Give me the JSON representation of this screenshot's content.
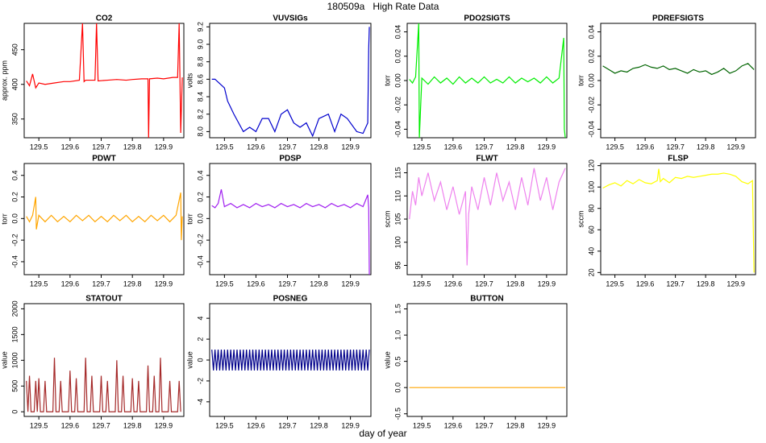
{
  "title": "180509a   High Rate Data",
  "x_label": "day of year",
  "chart_data": [
    {
      "type": "line",
      "title": "CO2",
      "y_label": "approx. ppm",
      "color": "#ff0000",
      "x": [
        129.46,
        129.47,
        129.48,
        129.49,
        129.5,
        129.52,
        129.55,
        129.58,
        129.6,
        129.63,
        129.64,
        129.645,
        129.65,
        129.68,
        129.685,
        129.69,
        129.72,
        129.75,
        129.78,
        129.8,
        129.83,
        129.85,
        129.852,
        129.855,
        129.88,
        129.9,
        129.93,
        129.945,
        129.95,
        129.955,
        129.96
      ],
      "values": [
        405,
        398,
        415,
        395,
        402,
        400,
        402,
        404,
        404,
        406,
        488,
        404,
        406,
        406,
        488,
        405,
        406,
        407,
        406,
        407,
        408,
        408,
        322,
        408,
        409,
        408,
        410,
        410,
        488,
        330,
        410
      ],
      "xlim": [
        129.453,
        129.965
      ],
      "xticks": [
        129.5,
        129.6,
        129.7,
        129.8,
        129.9
      ],
      "ylim": [
        323,
        488
      ],
      "yticks": [
        350,
        400,
        450
      ]
    },
    {
      "type": "line",
      "title": "VUVSIGs",
      "y_label": "volts",
      "color": "#0000cd",
      "x": [
        129.46,
        129.47,
        129.5,
        129.51,
        129.53,
        129.56,
        129.58,
        129.6,
        129.62,
        129.64,
        129.66,
        129.68,
        129.7,
        129.72,
        129.74,
        129.76,
        129.78,
        129.8,
        129.83,
        129.85,
        129.87,
        129.89,
        129.92,
        129.94,
        129.955,
        129.958,
        129.96
      ],
      "values": [
        8.6,
        8.6,
        8.5,
        8.35,
        8.2,
        8.0,
        8.05,
        8.0,
        8.15,
        8.15,
        8.0,
        8.2,
        8.25,
        8.1,
        8.05,
        8.1,
        7.95,
        8.15,
        8.2,
        8.0,
        8.2,
        8.15,
        8.0,
        7.98,
        8.1,
        8.95,
        9.2
      ],
      "xlim": [
        129.453,
        129.965
      ],
      "xticks": [
        129.5,
        129.6,
        129.7,
        129.8,
        129.9
      ],
      "ylim": [
        7.93,
        9.24
      ],
      "yticks": [
        {
          "value": 8,
          "label": "8.0"
        },
        {
          "value": 8.2,
          "label": "8.2"
        },
        {
          "value": 8.4,
          "label": "8.4"
        },
        {
          "value": 8.6,
          "label": "8.6"
        },
        {
          "value": 8.8,
          "label": "8.8"
        },
        {
          "value": 9,
          "label": "9.0"
        },
        {
          "value": 9.2,
          "label": "9.2"
        }
      ]
    },
    {
      "type": "line",
      "title": "PDO2SIGTS",
      "y_label": "torr",
      "color": "#00ee00",
      "x": [
        129.46,
        129.47,
        129.48,
        129.49,
        129.492,
        129.5,
        129.52,
        129.54,
        129.56,
        129.58,
        129.6,
        129.62,
        129.64,
        129.66,
        129.68,
        129.7,
        129.72,
        129.74,
        129.76,
        129.78,
        129.8,
        129.82,
        129.84,
        129.86,
        129.88,
        129.9,
        129.92,
        129.94,
        129.955,
        129.957,
        129.96
      ],
      "values": [
        0.001,
        -0.002,
        0.003,
        0.047,
        -0.047,
        0.002,
        -0.003,
        0.003,
        -0.002,
        0.002,
        -0.003,
        0.003,
        -0.002,
        0.002,
        -0.002,
        0.003,
        -0.002,
        0.001,
        -0.002,
        0.003,
        -0.002,
        0.002,
        -0.001,
        0.002,
        -0.002,
        0.003,
        -0.002,
        0.002,
        0.035,
        -0.04,
        -0.047
      ],
      "xlim": [
        129.453,
        129.965
      ],
      "xticks": [
        129.5,
        129.6,
        129.7,
        129.8,
        129.9
      ],
      "ylim": [
        -0.047,
        0.047
      ],
      "yticks": [
        {
          "value": -0.04,
          "label": "-0.04"
        },
        {
          "value": -0.02,
          "label": "-0.02"
        },
        {
          "value": 0,
          "label": "0.00"
        },
        {
          "value": 0.02,
          "label": "0.02"
        },
        {
          "value": 0.04,
          "label": "0.04"
        }
      ]
    },
    {
      "type": "line",
      "title": "PDREFSIGTS",
      "y_label": "torr",
      "color": "#006400",
      "x": [
        129.46,
        129.48,
        129.5,
        129.52,
        129.54,
        129.56,
        129.58,
        129.6,
        129.62,
        129.64,
        129.66,
        129.68,
        129.7,
        129.72,
        129.74,
        129.76,
        129.78,
        129.8,
        129.82,
        129.84,
        129.86,
        129.88,
        129.9,
        129.92,
        129.94,
        129.96
      ],
      "values": [
        0.012,
        0.009,
        0.006,
        0.008,
        0.007,
        0.01,
        0.011,
        0.013,
        0.011,
        0.01,
        0.012,
        0.009,
        0.01,
        0.008,
        0.006,
        0.009,
        0.007,
        0.008,
        0.005,
        0.007,
        0.01,
        0.006,
        0.008,
        0.012,
        0.014,
        0.009
      ],
      "xlim": [
        129.453,
        129.965
      ],
      "xticks": [
        129.5,
        129.6,
        129.7,
        129.8,
        129.9
      ],
      "ylim": [
        -0.047,
        0.047
      ],
      "yticks": [
        {
          "value": -0.04,
          "label": "-0.04"
        },
        {
          "value": -0.02,
          "label": "-0.02"
        },
        {
          "value": 0,
          "label": "0.00"
        },
        {
          "value": 0.02,
          "label": "0.02"
        },
        {
          "value": 0.04,
          "label": "0.04"
        }
      ]
    },
    {
      "type": "line",
      "title": "PDWT",
      "y_label": "torr",
      "color": "#ffa500",
      "x": [
        129.46,
        129.47,
        129.48,
        129.49,
        129.492,
        129.5,
        129.52,
        129.54,
        129.56,
        129.58,
        129.6,
        129.62,
        129.64,
        129.66,
        129.68,
        129.7,
        129.72,
        129.74,
        129.76,
        129.78,
        129.8,
        129.82,
        129.84,
        129.86,
        129.88,
        129.9,
        129.92,
        129.94,
        129.955,
        129.957,
        129.96
      ],
      "values": [
        0.02,
        -0.03,
        0.03,
        0.2,
        -0.1,
        0.03,
        -0.03,
        0.03,
        -0.03,
        0.02,
        -0.03,
        0.03,
        -0.02,
        0.03,
        -0.03,
        0.02,
        -0.03,
        0.03,
        -0.02,
        0.03,
        -0.03,
        0.02,
        -0.03,
        0.03,
        -0.02,
        0.03,
        -0.03,
        0.03,
        0.24,
        -0.2,
        0.02
      ],
      "xlim": [
        129.453,
        129.965
      ],
      "xticks": [
        129.5,
        129.6,
        129.7,
        129.8,
        129.9
      ],
      "ylim": [
        -0.52,
        0.51
      ],
      "yticks": [
        {
          "value": -0.4,
          "label": "-0.4"
        },
        {
          "value": -0.2,
          "label": "-0.2"
        },
        {
          "value": 0,
          "label": "0.0"
        },
        {
          "value": 0.2,
          "label": "0.2"
        },
        {
          "value": 0.4,
          "label": "0.4"
        }
      ]
    },
    {
      "type": "line",
      "title": "PDSP",
      "y_label": "torr",
      "color": "#a020f0",
      "x": [
        129.46,
        129.47,
        129.48,
        129.49,
        129.5,
        129.52,
        129.54,
        129.56,
        129.58,
        129.6,
        129.62,
        129.64,
        129.66,
        129.68,
        129.7,
        129.72,
        129.74,
        129.76,
        129.78,
        129.8,
        129.82,
        129.84,
        129.86,
        129.88,
        129.9,
        129.92,
        129.94,
        129.955,
        129.958,
        129.96
      ],
      "values": [
        0.12,
        0.1,
        0.14,
        0.27,
        0.11,
        0.14,
        0.1,
        0.13,
        0.1,
        0.14,
        0.11,
        0.13,
        0.1,
        0.14,
        0.11,
        0.13,
        0.1,
        0.14,
        0.11,
        0.13,
        0.1,
        0.14,
        0.11,
        0.13,
        0.1,
        0.14,
        0.11,
        0.22,
        0.1,
        -0.52
      ],
      "xlim": [
        129.453,
        129.965
      ],
      "xticks": [
        129.5,
        129.6,
        129.7,
        129.8,
        129.9
      ],
      "ylim": [
        -0.52,
        0.51
      ],
      "yticks": [
        {
          "value": -0.4,
          "label": "-0.4"
        },
        {
          "value": -0.2,
          "label": "-0.2"
        },
        {
          "value": 0,
          "label": "0.0"
        },
        {
          "value": 0.2,
          "label": "0.2"
        },
        {
          "value": 0.4,
          "label": "0.4"
        }
      ]
    },
    {
      "type": "line",
      "title": "FLWT",
      "y_label": "sccm",
      "color": "#ee82ee",
      "x": [
        129.46,
        129.47,
        129.48,
        129.49,
        129.5,
        129.52,
        129.54,
        129.56,
        129.58,
        129.6,
        129.62,
        129.64,
        129.645,
        129.65,
        129.66,
        129.68,
        129.7,
        129.72,
        129.74,
        129.76,
        129.78,
        129.8,
        129.82,
        129.84,
        129.86,
        129.88,
        129.9,
        129.92,
        129.94,
        129.96
      ],
      "values": [
        105,
        111,
        108,
        114,
        110,
        115,
        109,
        113,
        107,
        112,
        106,
        111,
        95,
        106,
        112,
        107,
        114,
        108,
        115,
        109,
        113,
        107,
        114,
        108,
        116,
        109,
        114,
        107,
        113,
        116
      ],
      "xlim": [
        129.453,
        129.965
      ],
      "xticks": [
        129.5,
        129.6,
        129.7,
        129.8,
        129.9
      ],
      "ylim": [
        93,
        117
      ],
      "yticks": [
        95,
        100,
        105,
        110,
        115
      ]
    },
    {
      "type": "line",
      "title": "FLSP",
      "y_label": "sccm",
      "color": "#ffff00",
      "x": [
        129.46,
        129.48,
        129.5,
        129.52,
        129.54,
        129.56,
        129.58,
        129.6,
        129.62,
        129.64,
        129.645,
        129.65,
        129.66,
        129.68,
        129.7,
        129.72,
        129.74,
        129.76,
        129.78,
        129.8,
        129.82,
        129.84,
        129.86,
        129.88,
        129.9,
        129.92,
        129.94,
        129.955,
        129.96
      ],
      "values": [
        99,
        102,
        104,
        101,
        106,
        103,
        107,
        104,
        103,
        106,
        117,
        105,
        108,
        104,
        109,
        108,
        110,
        109,
        110,
        111,
        112,
        112,
        113,
        112,
        110,
        105,
        103,
        106,
        20
      ],
      "xlim": [
        129.453,
        129.965
      ],
      "xticks": [
        129.5,
        129.6,
        129.7,
        129.8,
        129.9
      ],
      "ylim": [
        18,
        122
      ],
      "yticks": [
        20,
        40,
        60,
        80,
        100,
        120
      ]
    },
    {
      "type": "line",
      "title": "STATOUT",
      "y_label": "value",
      "color": "#a52a2a",
      "x": [
        129.46,
        129.465,
        129.47,
        129.475,
        129.485,
        129.49,
        129.495,
        129.5,
        129.505,
        129.515,
        129.52,
        129.525,
        129.545,
        129.55,
        129.555,
        129.565,
        129.57,
        129.575,
        129.595,
        129.6,
        129.605,
        129.615,
        129.62,
        129.625,
        129.645,
        129.65,
        129.655,
        129.665,
        129.67,
        129.675,
        129.695,
        129.7,
        129.705,
        129.715,
        129.72,
        129.725,
        129.745,
        129.75,
        129.755,
        129.765,
        129.77,
        129.775,
        129.795,
        129.8,
        129.805,
        129.815,
        129.82,
        129.825,
        129.845,
        129.85,
        129.855,
        129.865,
        129.87,
        129.875,
        129.885,
        129.89,
        129.895,
        129.915,
        129.92,
        129.925,
        129.945,
        129.95,
        129.955
      ],
      "values": [
        600,
        0,
        700,
        0,
        0,
        600,
        0,
        650,
        0,
        0,
        600,
        0,
        0,
        1050,
        0,
        0,
        600,
        0,
        0,
        800,
        0,
        0,
        650,
        0,
        0,
        1050,
        0,
        0,
        700,
        0,
        0,
        700,
        0,
        0,
        600,
        0,
        0,
        1000,
        0,
        0,
        700,
        0,
        0,
        650,
        0,
        0,
        600,
        0,
        0,
        900,
        0,
        0,
        700,
        0,
        0,
        1050,
        0,
        0,
        600,
        0,
        0,
        600,
        0
      ],
      "xlim": [
        129.453,
        129.965
      ],
      "xticks": [
        129.5,
        129.6,
        129.7,
        129.8,
        129.9
      ],
      "ylim": [
        -90,
        2100
      ],
      "yticks": [
        0,
        500,
        1000,
        1500,
        2000
      ]
    },
    {
      "type": "line",
      "title": "POSNEG",
      "y_label": "value",
      "color": "#00008b",
      "x": [
        129.46,
        129.465,
        129.47,
        129.475,
        129.48,
        129.485,
        129.49,
        129.495,
        129.5,
        129.505,
        129.51,
        129.515,
        129.52,
        129.525,
        129.53,
        129.535,
        129.54,
        129.545,
        129.55,
        129.555,
        129.56,
        129.565,
        129.57,
        129.575,
        129.58,
        129.585,
        129.59,
        129.595,
        129.6,
        129.605,
        129.61,
        129.615,
        129.62,
        129.625,
        129.63,
        129.635,
        129.64,
        129.645,
        129.65,
        129.655,
        129.66,
        129.665,
        129.67,
        129.675,
        129.68,
        129.685,
        129.69,
        129.695,
        129.7,
        129.705,
        129.71,
        129.715,
        129.72,
        129.725,
        129.73,
        129.735,
        129.74,
        129.745,
        129.75,
        129.755,
        129.76,
        129.765,
        129.77,
        129.775,
        129.78,
        129.785,
        129.79,
        129.795,
        129.8,
        129.805,
        129.81,
        129.815,
        129.82,
        129.825,
        129.83,
        129.835,
        129.84,
        129.845,
        129.85,
        129.855,
        129.86,
        129.865,
        129.87,
        129.875,
        129.88,
        129.885,
        129.89,
        129.895,
        129.9,
        129.905,
        129.91,
        129.915,
        129.92,
        129.925,
        129.93,
        129.935,
        129.94,
        129.945,
        129.95,
        129.955,
        129.96
      ],
      "values": [
        1,
        -1,
        1,
        -1,
        1,
        -1,
        1,
        -1,
        1,
        -1,
        1,
        -1,
        1,
        -1,
        1,
        -1,
        1,
        -1,
        1,
        -1,
        1,
        -1,
        1,
        -1,
        1,
        -1,
        1,
        -1,
        1,
        -1,
        1,
        -1,
        1,
        -1,
        1,
        -1,
        1,
        -1,
        1,
        -1,
        1,
        -1,
        1,
        -1,
        1,
        -1,
        1,
        -1,
        1,
        -1,
        1,
        -1,
        1,
        -1,
        1,
        -1,
        1,
        -1,
        1,
        -1,
        1,
        -1,
        1,
        -1,
        1,
        -1,
        1,
        -1,
        1,
        -1,
        1,
        -1,
        1,
        -1,
        1,
        -1,
        1,
        -1,
        1,
        -1,
        1,
        -1,
        1,
        -1,
        1,
        -1,
        1,
        -1,
        1,
        -1,
        1,
        -1,
        1,
        -1,
        1,
        -1,
        1,
        -1,
        1,
        -1,
        1
      ],
      "xlim": [
        129.453,
        129.965
      ],
      "xticks": [
        129.5,
        129.6,
        129.7,
        129.8,
        129.9
      ],
      "ylim": [
        -5.4,
        5.4
      ],
      "yticks": [
        -4,
        -2,
        0,
        2,
        4
      ]
    },
    {
      "type": "line",
      "title": "BUTTON",
      "y_label": "value",
      "color": "#ffa500",
      "x": [
        129.46,
        129.96
      ],
      "values": [
        0,
        0
      ],
      "xlim": [
        129.453,
        129.965
      ],
      "xticks": [
        129.5,
        129.6,
        129.7,
        129.8,
        129.9
      ],
      "ylim": [
        -0.55,
        1.6
      ],
      "yticks": [
        {
          "value": -0.5,
          "label": "-0.5"
        },
        {
          "value": 0,
          "label": "0.0"
        },
        {
          "value": 0.5,
          "label": "0.5"
        },
        {
          "value": 1,
          "label": "1.0"
        },
        {
          "value": 1.5,
          "label": "1.5"
        }
      ]
    }
  ]
}
